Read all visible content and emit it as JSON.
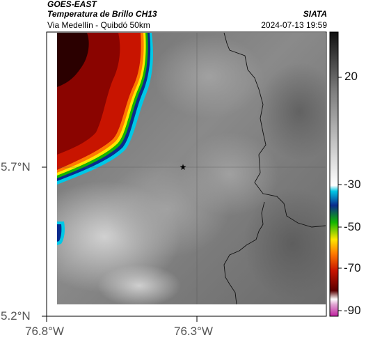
{
  "header": {
    "satellite": "GOES-EAST",
    "product": "Temperatura de Brillo CH13",
    "location": "Via Medellín - Quibdó 50km",
    "org": "SIATA",
    "datetime": "2024-07-13 19:59"
  },
  "axes": {
    "lat_ticks": [
      "5.7°N",
      "5.2°N"
    ],
    "lon_ticks": [
      "76.8°W",
      "76.3°W"
    ]
  },
  "colorbar": {
    "ticks": [
      "20",
      "-30",
      "-50",
      "-70",
      "-90"
    ],
    "colors": {
      "white": "#ffffff",
      "cyan": "#00c8e6",
      "blue": "#0a2a8c",
      "green": "#12b600",
      "yellow": "#ffe600",
      "orange": "#ff7a00",
      "red": "#c81400",
      "dark_red": "#5a0000",
      "magenta": "#c020a0"
    }
  },
  "map": {
    "marker_icon": "star-icon"
  }
}
